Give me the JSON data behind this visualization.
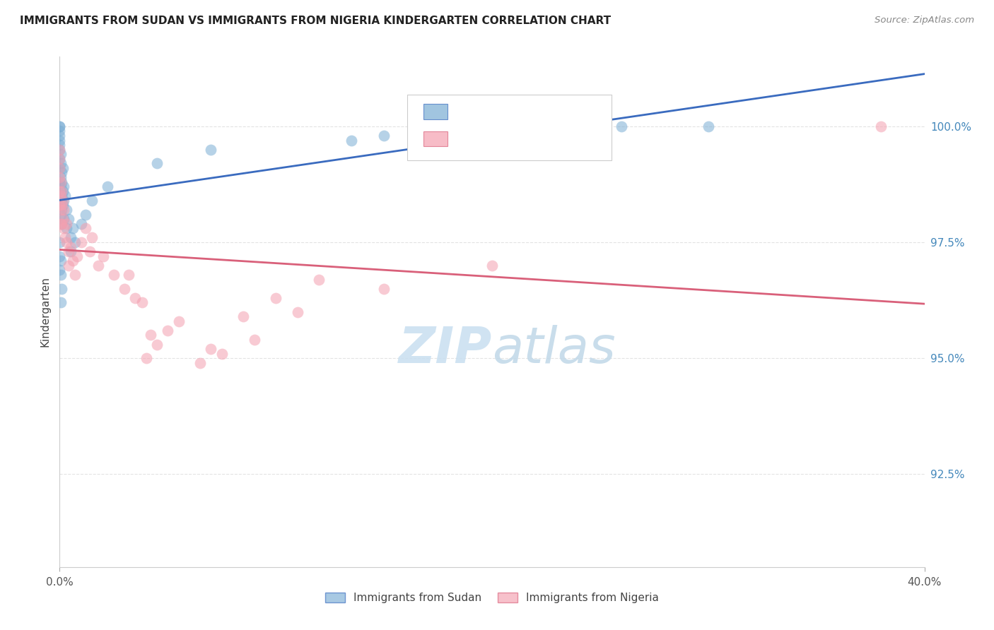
{
  "title": "IMMIGRANTS FROM SUDAN VS IMMIGRANTS FROM NIGERIA KINDERGARTEN CORRELATION CHART",
  "source": "Source: ZipAtlas.com",
  "ylabel": "Kindergarten",
  "ytick_values": [
    92.5,
    95.0,
    97.5,
    100.0
  ],
  "xlim": [
    0.0,
    40.0
  ],
  "ylim": [
    90.5,
    101.5
  ],
  "sudan_color": "#7aadd4",
  "nigeria_color": "#f4a0b0",
  "sudan_line_color": "#3a6bbf",
  "nigeria_line_color": "#d9607a",
  "sudan_x": [
    0.0,
    0.0,
    0.0,
    0.0,
    0.0,
    0.0,
    0.0,
    0.0,
    0.0,
    0.0,
    0.0,
    0.05,
    0.05,
    0.05,
    0.05,
    0.05,
    0.05,
    0.1,
    0.1,
    0.1,
    0.1,
    0.1,
    0.15,
    0.15,
    0.15,
    0.2,
    0.2,
    0.2,
    0.25,
    0.3,
    0.3,
    0.4,
    0.5,
    0.5,
    0.6,
    0.7,
    1.0,
    1.2,
    1.5,
    2.2,
    4.5,
    7.0,
    13.5,
    15.0,
    17.0,
    22.0,
    24.0,
    26.0,
    30.0,
    0.05,
    0.05,
    0.1,
    0.0,
    0.0,
    0.0,
    0.05
  ],
  "sudan_y": [
    99.5,
    99.6,
    99.7,
    99.8,
    99.9,
    100.0,
    100.0,
    99.3,
    99.1,
    98.8,
    98.5,
    99.4,
    99.2,
    98.9,
    98.7,
    98.4,
    98.1,
    99.0,
    98.8,
    98.5,
    98.2,
    97.9,
    99.1,
    98.6,
    98.3,
    98.7,
    98.4,
    98.0,
    98.5,
    98.2,
    97.8,
    98.0,
    97.6,
    97.3,
    97.8,
    97.5,
    97.9,
    98.1,
    98.4,
    98.7,
    99.2,
    99.5,
    99.7,
    99.8,
    99.9,
    100.0,
    99.9,
    100.0,
    100.0,
    97.1,
    96.8,
    96.5,
    97.5,
    97.2,
    96.9,
    96.2
  ],
  "nigeria_x": [
    0.0,
    0.0,
    0.0,
    0.0,
    0.0,
    0.0,
    0.05,
    0.05,
    0.05,
    0.05,
    0.1,
    0.1,
    0.1,
    0.15,
    0.15,
    0.2,
    0.2,
    0.25,
    0.3,
    0.3,
    0.4,
    0.4,
    0.5,
    0.6,
    0.7,
    0.8,
    1.0,
    1.2,
    1.4,
    1.5,
    1.8,
    2.0,
    2.5,
    3.0,
    3.5,
    4.0,
    4.5,
    5.0,
    6.5,
    7.5,
    9.0,
    11.0,
    15.0,
    20.0,
    38.0,
    3.2,
    3.8,
    4.2,
    5.5,
    7.0,
    8.5,
    10.0,
    12.0
  ],
  "nigeria_y": [
    99.5,
    99.3,
    99.1,
    98.9,
    98.6,
    98.3,
    98.8,
    98.5,
    98.2,
    97.9,
    98.6,
    98.3,
    97.9,
    98.4,
    98.0,
    98.2,
    97.8,
    97.6,
    97.9,
    97.5,
    97.3,
    97.0,
    97.4,
    97.1,
    96.8,
    97.2,
    97.5,
    97.8,
    97.3,
    97.6,
    97.0,
    97.2,
    96.8,
    96.5,
    96.3,
    95.0,
    95.3,
    95.6,
    94.9,
    95.1,
    95.4,
    96.0,
    96.5,
    97.0,
    100.0,
    96.8,
    96.2,
    95.5,
    95.8,
    95.2,
    95.9,
    96.3,
    96.7
  ],
  "background_color": "#ffffff",
  "grid_color": "#e0e0e0",
  "watermark_zip": "ZIP",
  "watermark_atlas": "atlas",
  "watermark_color_zip": "#c8dff0",
  "watermark_color_atlas": "#c0d8e8",
  "legend_label1": "Immigrants from Sudan",
  "legend_label2": "Immigrants from Nigeria"
}
